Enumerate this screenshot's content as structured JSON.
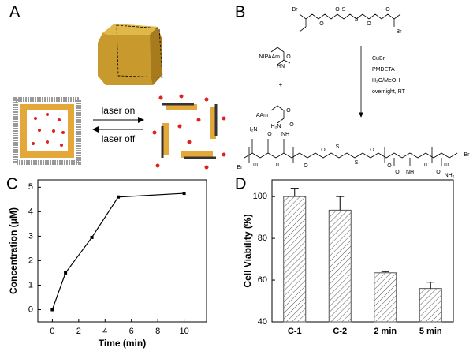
{
  "panels": {
    "a": "A",
    "b": "B",
    "c": "C",
    "d": "D"
  },
  "diagram_a": {
    "laser_on": "laser on",
    "laser_off": "laser off"
  },
  "diagram_b": {
    "monomer_1": "NIPAAm",
    "plus": "+",
    "monomer_2": "AAm",
    "conditions": [
      "CuBr",
      "PMDETA",
      "H₂O/MeOH",
      "overnight, RT"
    ],
    "initiator_atoms": [
      "Br",
      "O",
      "O",
      "S",
      "S",
      "O",
      "O",
      "Br"
    ],
    "monomer_1_atoms": [
      "O",
      "HN"
    ],
    "monomer_2_atoms": [
      "O",
      "H₂N"
    ],
    "product_atoms": [
      "H₂N",
      "O",
      "NH",
      "O",
      "Br",
      "m",
      "n",
      "O",
      "O",
      "S",
      "S",
      "O",
      "O",
      "n",
      "m",
      "Br",
      "O",
      "NH",
      "O",
      "NH₂"
    ]
  },
  "chart_data": [
    {
      "type": "line",
      "x_label": "Time (min)",
      "y_label": "Concentration (μM)",
      "x": [
        0,
        1,
        3,
        5,
        10
      ],
      "values": [
        0,
        1.5,
        2.95,
        4.6,
        4.75
      ],
      "color": "#000000",
      "xlim": [
        -1.1,
        11.7
      ],
      "xticks": [
        0,
        2,
        4,
        6,
        8,
        10
      ],
      "ylim": [
        -0.5,
        5.3
      ],
      "yticks": [
        0,
        1,
        2,
        3,
        4,
        5
      ]
    },
    {
      "type": "bar",
      "y_label": "Cell Viability (%)",
      "categories": [
        "C-1",
        "C-2",
        "2 min",
        "5 min"
      ],
      "values": [
        100,
        93.5,
        63.5,
        56
      ],
      "errors": [
        4,
        6.5,
        0.6,
        3
      ],
      "color": "#555555",
      "ylim": [
        40,
        108
      ],
      "yticks": [
        40,
        60,
        80,
        100
      ]
    }
  ]
}
